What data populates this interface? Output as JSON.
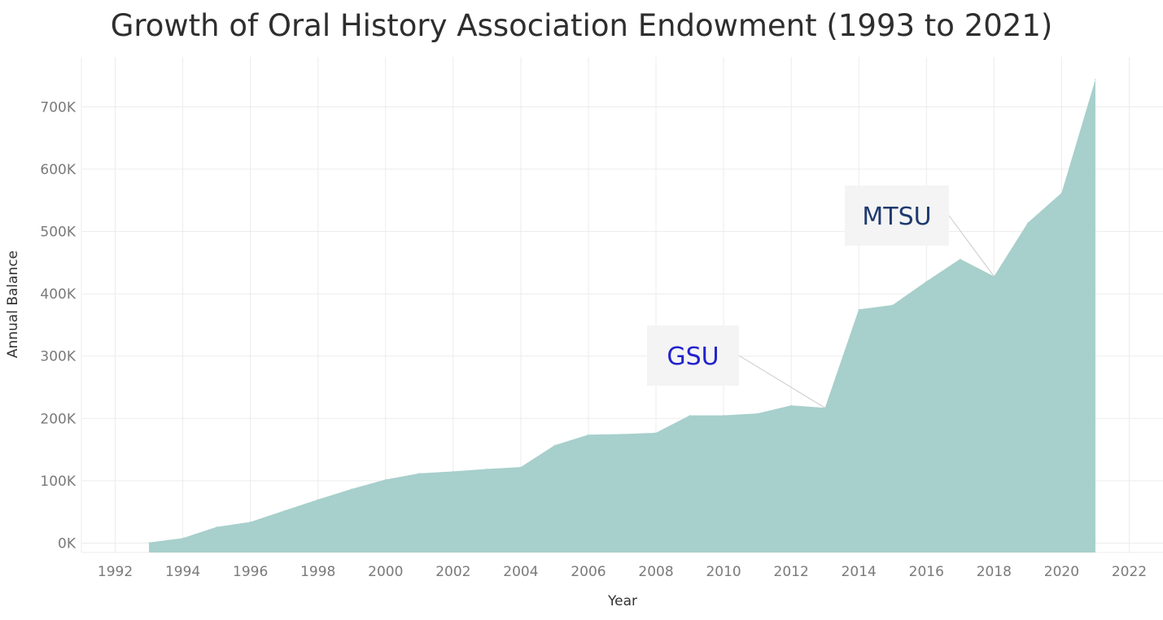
{
  "title": "Growth of Oral History Association Endowment (1993 to 2021)",
  "chart_data": {
    "type": "area",
    "xlabel": "Year",
    "ylabel": "Annual Balance",
    "xlim": [
      1991,
      2023
    ],
    "ylim": [
      -15000,
      780000
    ],
    "x_ticks": [
      1992,
      1994,
      1996,
      1998,
      2000,
      2002,
      2004,
      2006,
      2008,
      2010,
      2012,
      2014,
      2016,
      2018,
      2020,
      2022
    ],
    "y_ticks": [
      {
        "value": 0,
        "label": "0K"
      },
      {
        "value": 100000,
        "label": "100K"
      },
      {
        "value": 200000,
        "label": "200K"
      },
      {
        "value": 300000,
        "label": "300K"
      },
      {
        "value": 400000,
        "label": "400K"
      },
      {
        "value": 500000,
        "label": "500K"
      },
      {
        "value": 600000,
        "label": "600K"
      },
      {
        "value": 700000,
        "label": "700K"
      }
    ],
    "grid": true,
    "color": "#a7cfcb",
    "series": [
      {
        "x": [
          1993,
          1994,
          1995,
          1996,
          1997,
          1998,
          1999,
          2000,
          2001,
          2002,
          2003,
          2004,
          2005,
          2006,
          2007,
          2008,
          2009,
          2010,
          2011,
          2012,
          2013,
          2014,
          2015,
          2016,
          2017,
          2018,
          2019,
          2020,
          2021
        ],
        "values": [
          1000,
          8000,
          26000,
          34000,
          52000,
          70000,
          87000,
          102000,
          112000,
          115000,
          119000,
          122000,
          157000,
          174000,
          175000,
          177000,
          205000,
          205000,
          208000,
          221000,
          217000,
          375000,
          382000,
          420000,
          456000,
          428000,
          514000,
          562000,
          744000
        ]
      }
    ],
    "annotations": [
      {
        "text": "GSU",
        "x": 2013,
        "y": 217000,
        "color": "#2222cc"
      },
      {
        "text": "MTSU",
        "x": 2018,
        "y": 428000,
        "color": "#1f3a6e"
      }
    ]
  }
}
